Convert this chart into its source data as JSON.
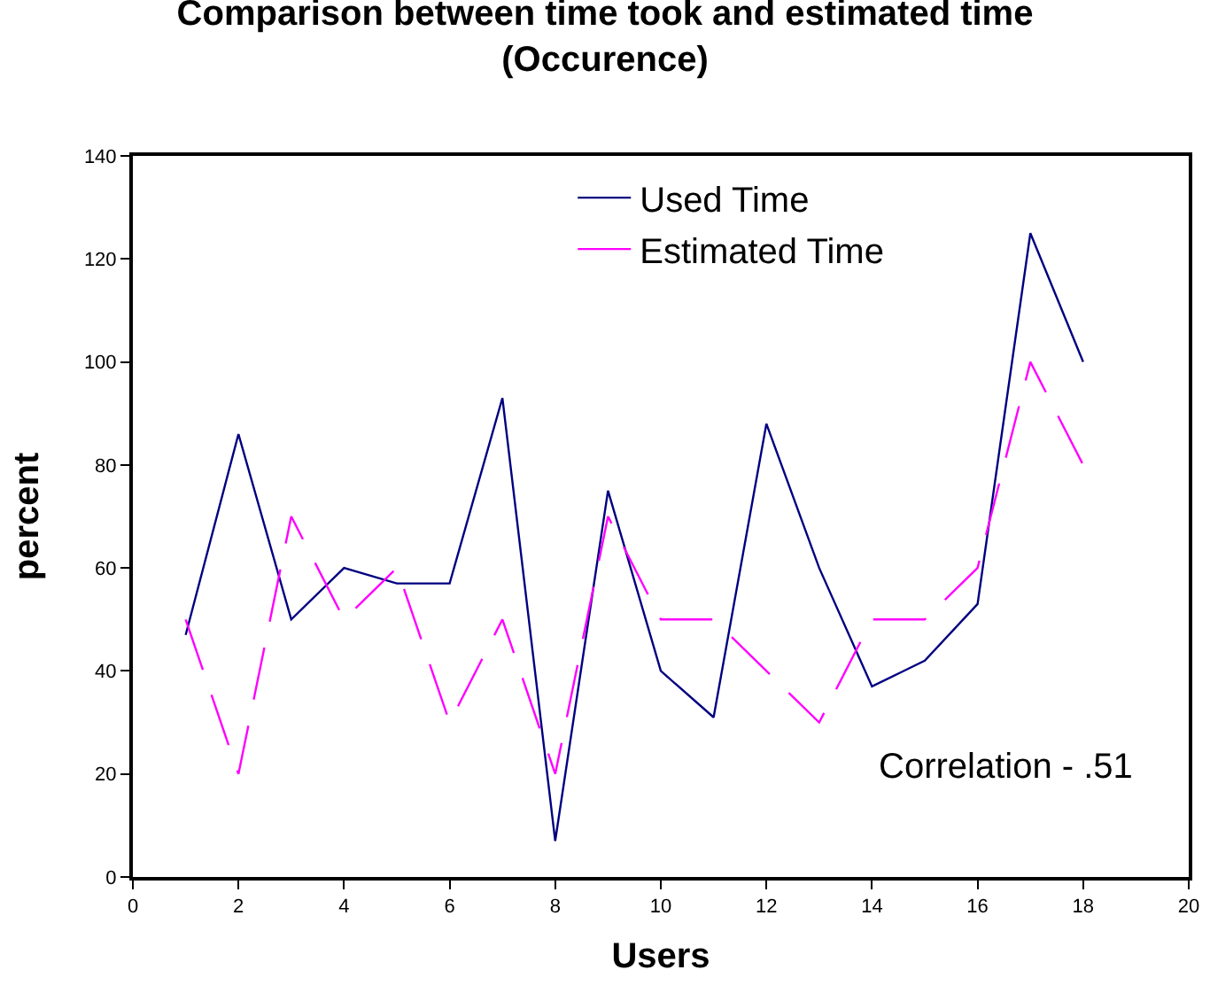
{
  "chart_data": {
    "type": "line",
    "title": "Comparison between time took and estimated time\n(Occurence)",
    "xlabel": "Users",
    "ylabel": "percent",
    "x": [
      1,
      2,
      3,
      4,
      5,
      6,
      7,
      8,
      9,
      10,
      11,
      12,
      13,
      14,
      15,
      16,
      17,
      18
    ],
    "series": [
      {
        "name": "Used Time",
        "color": "#000080",
        "line_style": "solid",
        "values": [
          47,
          86,
          50,
          60,
          57,
          57,
          93,
          7,
          75,
          40,
          31,
          88,
          60,
          37,
          42,
          53,
          125,
          100
        ]
      },
      {
        "name": "Estimated Time",
        "color": "#ff00ff",
        "line_style": "dashed",
        "values": [
          50,
          20,
          70,
          50,
          60,
          30,
          50,
          20,
          70,
          50,
          50,
          40,
          30,
          50,
          50,
          60,
          100,
          80
        ]
      }
    ],
    "xlim": [
      0,
      20
    ],
    "xticks": [
      0,
      2,
      4,
      6,
      8,
      10,
      12,
      14,
      16,
      18,
      20
    ],
    "ylim": [
      0,
      140
    ],
    "yticks": [
      0,
      20,
      40,
      60,
      80,
      100,
      120,
      140
    ],
    "grid": false,
    "legend": "top right",
    "marker": "none",
    "annotations": [
      "Correlation - .51"
    ]
  }
}
